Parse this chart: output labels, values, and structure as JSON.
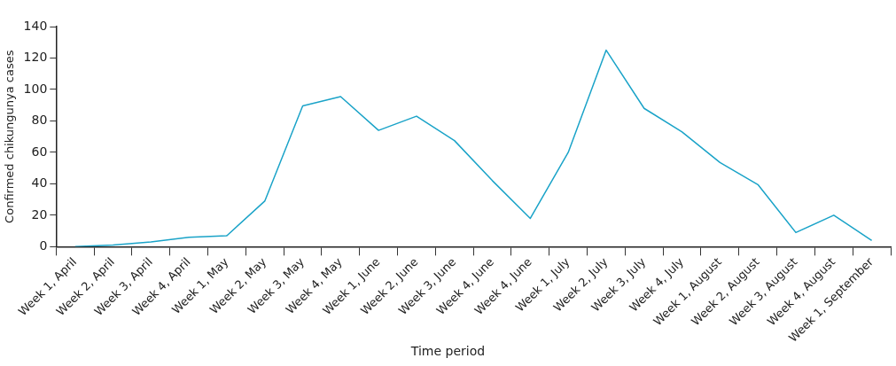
{
  "chart_data": {
    "type": "line",
    "xlabel": "Time period",
    "ylabel": "Confirmed chikungunya cases",
    "categories": [
      "Week 1, April",
      "Week 2, April",
      "Week 3, April",
      "Week 4, April",
      "Week 1, May",
      "Week 2, May",
      "Week 3, May",
      "Week 4, May",
      "Week 1, June",
      "Week 2, June",
      "Week 3, June",
      "Week 4, June",
      "Week 4, June",
      "Week 1, July",
      "Week 2, July",
      "Week 3, July",
      "Week 4, July",
      "Week 1, August",
      "Week 2, August",
      "Week 3, August",
      "Week 4, August",
      "Week 1, September"
    ],
    "series": [
      {
        "color": "#1aa3c8",
        "values": [
          0,
          1,
          3,
          6,
          7,
          29,
          89.5,
          95.5,
          74,
          83,
          67.5,
          42,
          18,
          60,
          125,
          88,
          73,
          53.5,
          39.5,
          9,
          20,
          4
        ]
      }
    ],
    "ylim": [
      0,
      140
    ],
    "yticks": [
      0,
      20,
      40,
      60,
      80,
      100,
      120,
      140
    ],
    "grid": false,
    "legend": false,
    "marker": "none",
    "line_style": "solid"
  }
}
